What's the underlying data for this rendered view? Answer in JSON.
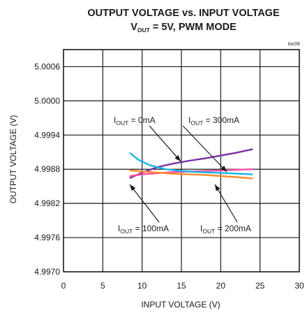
{
  "chart_data": {
    "type": "line",
    "title_line1": "OUTPUT VOLTAGE vs. INPUT VOLTAGE",
    "title_line2_main": "V",
    "title_line2_sub": "OUT",
    "title_line2_rest": " = 5V, PWM MODE",
    "figure_code": "toc06",
    "xlabel": "INPUT VOLTAGE (V)",
    "ylabel": "OUTPUT VOLTAGE (V)",
    "xlim": [
      0,
      30
    ],
    "ylim": [
      4.997,
      5.0009
    ],
    "xticks": [
      0,
      5,
      10,
      15,
      20,
      25,
      30
    ],
    "xtick_labels": [
      "0",
      "5",
      "10",
      "15",
      "20",
      "25",
      "30"
    ],
    "yticks": [
      4.997,
      4.9976,
      4.9982,
      4.9988,
      4.9994,
      5.0,
      5.0006
    ],
    "ytick_labels": [
      "4.9970",
      "4.9976",
      "4.9982",
      "4.9988",
      "4.9994",
      "5.0000",
      "5.0006"
    ],
    "grid": true,
    "series": [
      {
        "name": "0mA",
        "color": "#7b2fa8",
        "points": [
          [
            8.5,
            4.99865
          ],
          [
            10,
            4.99874
          ],
          [
            12,
            4.99884
          ],
          [
            14,
            4.9989
          ],
          [
            16,
            4.99895
          ],
          [
            18,
            4.99899
          ],
          [
            20,
            4.99904
          ],
          [
            22,
            4.99909
          ],
          [
            24,
            4.99915
          ]
        ]
      },
      {
        "name": "100mA",
        "color": "#ff4fa3",
        "points": [
          [
            8.5,
            4.99868
          ],
          [
            10,
            4.99871
          ],
          [
            12,
            4.99873
          ],
          [
            14,
            4.99875
          ],
          [
            16,
            4.99876
          ],
          [
            18,
            4.99877
          ],
          [
            20,
            4.99878
          ],
          [
            22,
            4.99879
          ],
          [
            24,
            4.9988
          ]
        ]
      },
      {
        "name": "200mA",
        "color": "#ff8a2a",
        "points": [
          [
            8.5,
            4.99878
          ],
          [
            10,
            4.99876
          ],
          [
            12,
            4.99874
          ],
          [
            14,
            4.99872
          ],
          [
            16,
            4.99871
          ],
          [
            18,
            4.9987
          ],
          [
            20,
            4.99868
          ],
          [
            22,
            4.99866
          ],
          [
            24,
            4.99864
          ]
        ]
      },
      {
        "name": "300mA",
        "color": "#17b4e4",
        "points": [
          [
            8.5,
            4.99908
          ],
          [
            9.5,
            4.99897
          ],
          [
            11,
            4.99887
          ],
          [
            13,
            4.9988
          ],
          [
            15,
            4.99877
          ],
          [
            17,
            4.99875
          ],
          [
            19,
            4.99874
          ],
          [
            21,
            4.99873
          ],
          [
            24,
            4.99871
          ]
        ]
      }
    ],
    "annotations": [
      {
        "main": "I",
        "sub": "OUT",
        "rest": " = 0mA"
      },
      {
        "main": "I",
        "sub": "OUT",
        "rest": " = 300mA"
      },
      {
        "main": "I",
        "sub": "OUT",
        "rest": " = 100mA"
      },
      {
        "main": "I",
        "sub": "OUT",
        "rest": " = 200mA"
      }
    ]
  }
}
